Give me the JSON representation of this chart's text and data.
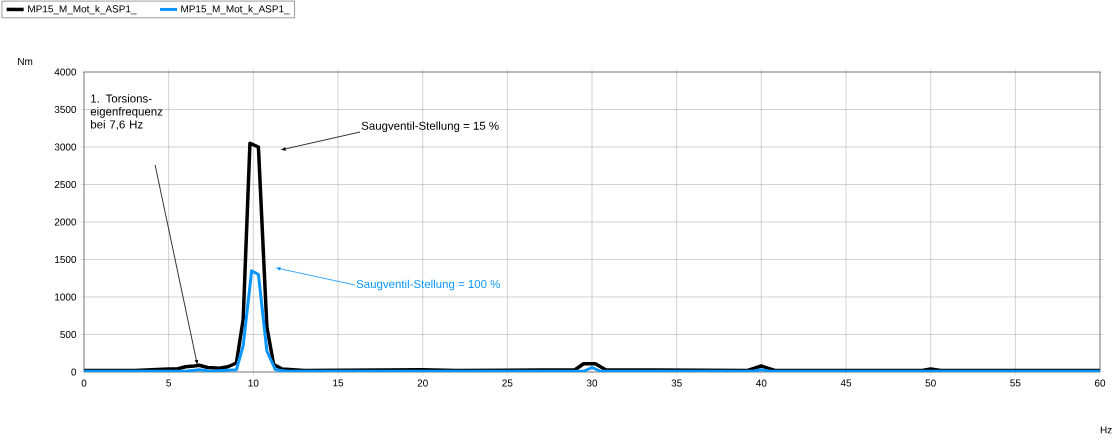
{
  "chart_data": {
    "type": "line",
    "xlabel": "Hz",
    "ylabel": "Nm",
    "xlim": [
      0,
      60
    ],
    "ylim": [
      0,
      4000
    ],
    "xticks": [
      0,
      5,
      10,
      15,
      20,
      25,
      30,
      35,
      40,
      45,
      50,
      55,
      60
    ],
    "yticks": [
      0,
      500,
      1000,
      1500,
      2000,
      2500,
      3000,
      3500,
      4000
    ],
    "grid": true,
    "legend": "top",
    "marker": "none",
    "line_style": "solid",
    "series": [
      {
        "name": "MP15_M_Mot_k_ASP1_",
        "color": "#000000",
        "x": [
          0,
          3,
          5,
          5.5,
          6,
          6.5,
          6.8,
          7.3,
          8,
          8.5,
          9,
          9.4,
          9.8,
          10.3,
          10.8,
          11.2,
          11.7,
          13,
          20,
          22,
          29,
          29.5,
          30.2,
          30.8,
          39.2,
          40,
          40.8,
          49.5,
          50,
          50.6,
          60
        ],
        "values": [
          20,
          20,
          40,
          40,
          70,
          80,
          90,
          60,
          50,
          70,
          120,
          700,
          3050,
          3000,
          600,
          100,
          40,
          20,
          30,
          20,
          30,
          110,
          110,
          30,
          20,
          80,
          20,
          20,
          40,
          20,
          20
        ]
      },
      {
        "name": "MP15_M_Mot_k_ASP1_",
        "color": "#0a96ff",
        "x": [
          0,
          6,
          6.8,
          7.5,
          9,
          9.4,
          9.9,
          10.3,
          10.8,
          11.3,
          12,
          29.5,
          30,
          30.5,
          39.5,
          40,
          40.5,
          60
        ],
        "values": [
          10,
          10,
          30,
          10,
          30,
          350,
          1350,
          1300,
          280,
          30,
          10,
          10,
          60,
          10,
          10,
          30,
          10,
          10
        ]
      }
    ],
    "annotations": [
      "1. Torsions-eigenfrequenz bei 7,6 Hz",
      "Saugventil-Stellung = 15 %",
      "Saugventil-Stellung = 100 %"
    ]
  }
}
